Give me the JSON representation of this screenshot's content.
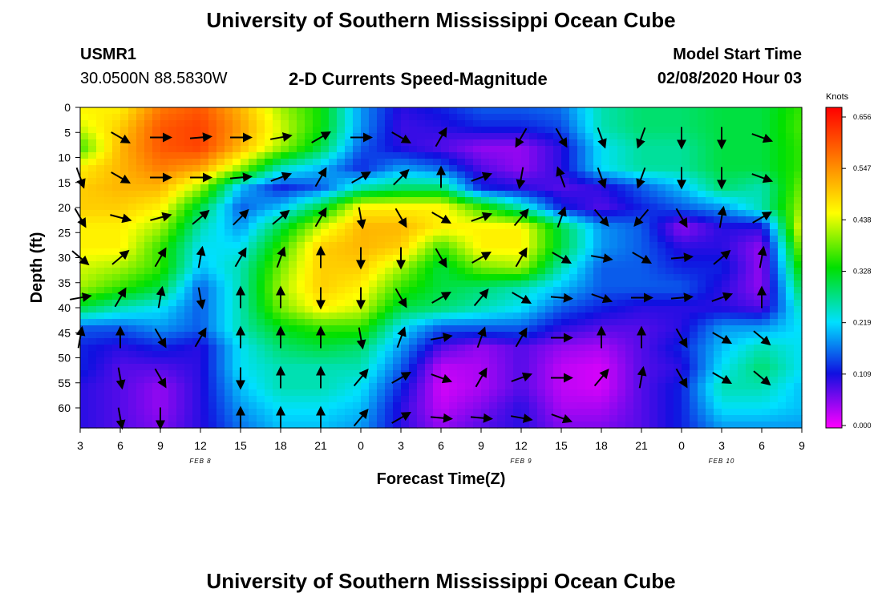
{
  "header": {
    "title_top": "University of Southern Mississippi Ocean Cube",
    "station_id": "USMR1",
    "station_coords": "30.0500N 88.5830W",
    "plot_title": "2-D Currents Speed-Magnitude",
    "model_start_label": "Model Start Time",
    "model_start_value": "02/08/2020 Hour 03",
    "title_bottom": "University of Southern Mississippi Ocean Cube"
  },
  "chart_data": {
    "type": "heatmap",
    "title": "2-D Currents Speed-Magnitude",
    "xlabel": "Forecast Time(Z)",
    "ylabel": "Depth (ft)",
    "x_ticks": [
      "3",
      "6",
      "9",
      "12",
      "15",
      "18",
      "21",
      "0",
      "3",
      "6",
      "9",
      "12",
      "15",
      "18",
      "21",
      "0",
      "3",
      "6",
      "9"
    ],
    "date_labels": [
      {
        "text": "FEB 8",
        "at_tick": 3
      },
      {
        "text": "FEB 9",
        "at_tick": 11
      },
      {
        "text": "FEB 10",
        "at_tick": 16
      }
    ],
    "y_ticks": [
      0,
      5,
      10,
      15,
      20,
      25,
      30,
      35,
      40,
      45,
      50,
      55,
      60
    ],
    "ylim": [
      0,
      64
    ],
    "y_inverted": true,
    "colorbar": {
      "label": "Knots",
      "ticks": [
        "0.656",
        "0.547",
        "0.438",
        "0.328",
        "0.219",
        "0.109",
        "0.000"
      ],
      "range": [
        0,
        0.656
      ]
    },
    "depths": [
      0,
      4,
      8,
      12,
      16,
      20,
      24,
      28,
      32,
      36,
      40,
      44,
      48,
      52,
      56,
      60,
      64
    ],
    "speeds": [
      [
        0.45,
        0.45,
        0.55,
        0.58,
        0.5,
        0.4,
        0.33,
        0.18,
        0.1,
        0.12,
        0.15,
        0.15,
        0.16,
        0.25,
        0.28,
        0.28,
        0.3,
        0.3,
        0.35
      ],
      [
        0.42,
        0.48,
        0.58,
        0.6,
        0.52,
        0.42,
        0.33,
        0.18,
        0.09,
        0.1,
        0.12,
        0.12,
        0.14,
        0.25,
        0.28,
        0.28,
        0.3,
        0.3,
        0.36
      ],
      [
        0.35,
        0.5,
        0.58,
        0.6,
        0.5,
        0.4,
        0.3,
        0.15,
        0.1,
        0.08,
        0.05,
        0.05,
        0.1,
        0.22,
        0.26,
        0.26,
        0.3,
        0.3,
        0.35
      ],
      [
        0.45,
        0.5,
        0.55,
        0.52,
        0.4,
        0.25,
        0.2,
        0.12,
        0.18,
        0.15,
        0.08,
        0.05,
        0.1,
        0.22,
        0.26,
        0.26,
        0.3,
        0.3,
        0.35
      ],
      [
        0.48,
        0.5,
        0.5,
        0.4,
        0.2,
        0.12,
        0.15,
        0.25,
        0.28,
        0.28,
        0.12,
        0.1,
        0.08,
        0.1,
        0.15,
        0.2,
        0.28,
        0.25,
        0.38
      ],
      [
        0.48,
        0.48,
        0.45,
        0.3,
        0.15,
        0.2,
        0.3,
        0.45,
        0.45,
        0.45,
        0.35,
        0.25,
        0.12,
        0.08,
        0.12,
        0.15,
        0.18,
        0.25,
        0.4
      ],
      [
        0.45,
        0.45,
        0.4,
        0.25,
        0.18,
        0.3,
        0.42,
        0.5,
        0.5,
        0.45,
        0.45,
        0.45,
        0.3,
        0.18,
        0.15,
        0.05,
        0.1,
        0.1,
        0.45
      ],
      [
        0.45,
        0.45,
        0.35,
        0.22,
        0.22,
        0.35,
        0.48,
        0.5,
        0.48,
        0.35,
        0.45,
        0.45,
        0.3,
        0.18,
        0.15,
        0.1,
        0.1,
        0.05,
        0.4
      ],
      [
        0.42,
        0.4,
        0.35,
        0.2,
        0.25,
        0.38,
        0.48,
        0.48,
        0.4,
        0.3,
        0.38,
        0.4,
        0.25,
        0.15,
        0.15,
        0.12,
        0.12,
        0.05,
        0.35
      ],
      [
        0.4,
        0.35,
        0.3,
        0.15,
        0.25,
        0.4,
        0.48,
        0.45,
        0.35,
        0.3,
        0.28,
        0.25,
        0.2,
        0.15,
        0.15,
        0.15,
        0.1,
        0.05,
        0.3
      ],
      [
        0.3,
        0.25,
        0.22,
        0.15,
        0.25,
        0.38,
        0.45,
        0.42,
        0.3,
        0.28,
        0.25,
        0.22,
        0.15,
        0.12,
        0.1,
        0.1,
        0.1,
        0.08,
        0.25
      ],
      [
        0.15,
        0.15,
        0.18,
        0.15,
        0.25,
        0.32,
        0.35,
        0.35,
        0.22,
        0.15,
        0.15,
        0.15,
        0.1,
        0.08,
        0.08,
        0.1,
        0.18,
        0.18,
        0.22
      ],
      [
        0.12,
        0.1,
        0.12,
        0.1,
        0.22,
        0.28,
        0.3,
        0.28,
        0.18,
        0.08,
        0.05,
        0.08,
        0.05,
        0.04,
        0.08,
        0.12,
        0.2,
        0.25,
        0.22
      ],
      [
        0.12,
        0.08,
        0.08,
        0.1,
        0.22,
        0.25,
        0.25,
        0.25,
        0.15,
        0.03,
        0.04,
        0.08,
        0.03,
        0.02,
        0.08,
        0.1,
        0.22,
        0.28,
        0.22
      ],
      [
        0.1,
        0.08,
        0.05,
        0.1,
        0.2,
        0.25,
        0.25,
        0.22,
        0.12,
        0.02,
        0.04,
        0.08,
        0.03,
        0.02,
        0.08,
        0.12,
        0.25,
        0.25,
        0.2
      ],
      [
        0.1,
        0.08,
        0.05,
        0.1,
        0.18,
        0.22,
        0.22,
        0.2,
        0.1,
        0.03,
        0.06,
        0.1,
        0.04,
        0.04,
        0.08,
        0.12,
        0.22,
        0.22,
        0.2
      ],
      [
        0.1,
        0.08,
        0.06,
        0.1,
        0.16,
        0.2,
        0.2,
        0.18,
        0.1,
        0.05,
        0.08,
        0.1,
        0.06,
        0.06,
        0.08,
        0.12,
        0.18,
        0.18,
        0.18
      ]
    ],
    "vectors": [
      {
        "x": 1,
        "d": 6,
        "ang": -30
      },
      {
        "x": 2,
        "d": 6,
        "ang": 0
      },
      {
        "x": 3,
        "d": 6,
        "ang": 5
      },
      {
        "x": 4,
        "d": 6,
        "ang": 0
      },
      {
        "x": 5,
        "d": 6,
        "ang": 10
      },
      {
        "x": 6,
        "d": 6,
        "ang": 30
      },
      {
        "x": 7,
        "d": 6,
        "ang": 0
      },
      {
        "x": 8,
        "d": 6,
        "ang": -30
      },
      {
        "x": 9,
        "d": 6,
        "ang": 60
      },
      {
        "x": 11,
        "d": 6,
        "ang": -120
      },
      {
        "x": 12,
        "d": 6,
        "ang": -60
      },
      {
        "x": 13,
        "d": 6,
        "ang": -70
      },
      {
        "x": 14,
        "d": 6,
        "ang": -110
      },
      {
        "x": 15,
        "d": 6,
        "ang": -90
      },
      {
        "x": 16,
        "d": 6,
        "ang": -90
      },
      {
        "x": 17,
        "d": 6,
        "ang": -20
      },
      {
        "x": 0,
        "d": 14,
        "ang": -70
      },
      {
        "x": 1,
        "d": 14,
        "ang": -30
      },
      {
        "x": 2,
        "d": 14,
        "ang": 0
      },
      {
        "x": 3,
        "d": 14,
        "ang": 0
      },
      {
        "x": 4,
        "d": 14,
        "ang": 5
      },
      {
        "x": 5,
        "d": 14,
        "ang": 20
      },
      {
        "x": 6,
        "d": 14,
        "ang": 60
      },
      {
        "x": 7,
        "d": 14,
        "ang": 30
      },
      {
        "x": 8,
        "d": 14,
        "ang": 45
      },
      {
        "x": 9,
        "d": 14,
        "ang": 90
      },
      {
        "x": 10,
        "d": 14,
        "ang": 20
      },
      {
        "x": 11,
        "d": 14,
        "ang": -100
      },
      {
        "x": 12,
        "d": 14,
        "ang": 110
      },
      {
        "x": 13,
        "d": 14,
        "ang": -70
      },
      {
        "x": 14,
        "d": 14,
        "ang": -110
      },
      {
        "x": 15,
        "d": 14,
        "ang": -90
      },
      {
        "x": 16,
        "d": 14,
        "ang": -90
      },
      {
        "x": 17,
        "d": 14,
        "ang": -20
      },
      {
        "x": 0,
        "d": 22,
        "ang": -60
      },
      {
        "x": 1,
        "d": 22,
        "ang": -15
      },
      {
        "x": 2,
        "d": 22,
        "ang": 15
      },
      {
        "x": 3,
        "d": 22,
        "ang": 40
      },
      {
        "x": 4,
        "d": 22,
        "ang": 45
      },
      {
        "x": 5,
        "d": 22,
        "ang": 40
      },
      {
        "x": 6,
        "d": 22,
        "ang": 60
      },
      {
        "x": 7,
        "d": 22,
        "ang": -80
      },
      {
        "x": 8,
        "d": 22,
        "ang": -60
      },
      {
        "x": 9,
        "d": 22,
        "ang": -30
      },
      {
        "x": 10,
        "d": 22,
        "ang": 20
      },
      {
        "x": 11,
        "d": 22,
        "ang": 50
      },
      {
        "x": 12,
        "d": 22,
        "ang": 70
      },
      {
        "x": 13,
        "d": 22,
        "ang": -50
      },
      {
        "x": 14,
        "d": 22,
        "ang": -130
      },
      {
        "x": 15,
        "d": 22,
        "ang": -60
      },
      {
        "x": 16,
        "d": 22,
        "ang": 80
      },
      {
        "x": 17,
        "d": 22,
        "ang": 30
      },
      {
        "x": 0,
        "d": 30,
        "ang": -40
      },
      {
        "x": 1,
        "d": 30,
        "ang": 40
      },
      {
        "x": 2,
        "d": 30,
        "ang": 60
      },
      {
        "x": 3,
        "d": 30,
        "ang": 80
      },
      {
        "x": 4,
        "d": 30,
        "ang": 60
      },
      {
        "x": 5,
        "d": 30,
        "ang": 70
      },
      {
        "x": 6,
        "d": 30,
        "ang": 90
      },
      {
        "x": 7,
        "d": 30,
        "ang": -90
      },
      {
        "x": 8,
        "d": 30,
        "ang": -90
      },
      {
        "x": 9,
        "d": 30,
        "ang": -60
      },
      {
        "x": 10,
        "d": 30,
        "ang": 30
      },
      {
        "x": 11,
        "d": 30,
        "ang": 60
      },
      {
        "x": 12,
        "d": 30,
        "ang": -30
      },
      {
        "x": 13,
        "d": 30,
        "ang": -10
      },
      {
        "x": 14,
        "d": 30,
        "ang": -30
      },
      {
        "x": 15,
        "d": 30,
        "ang": 5
      },
      {
        "x": 16,
        "d": 30,
        "ang": 40
      },
      {
        "x": 17,
        "d": 30,
        "ang": 80
      },
      {
        "x": 0,
        "d": 38,
        "ang": 10
      },
      {
        "x": 1,
        "d": 38,
        "ang": 60
      },
      {
        "x": 2,
        "d": 38,
        "ang": 80
      },
      {
        "x": 3,
        "d": 38,
        "ang": -80
      },
      {
        "x": 4,
        "d": 38,
        "ang": 90
      },
      {
        "x": 5,
        "d": 38,
        "ang": 90
      },
      {
        "x": 6,
        "d": 38,
        "ang": -90
      },
      {
        "x": 7,
        "d": 38,
        "ang": -90
      },
      {
        "x": 8,
        "d": 38,
        "ang": -60
      },
      {
        "x": 9,
        "d": 38,
        "ang": 30
      },
      {
        "x": 10,
        "d": 38,
        "ang": 50
      },
      {
        "x": 11,
        "d": 38,
        "ang": -30
      },
      {
        "x": 12,
        "d": 38,
        "ang": -5
      },
      {
        "x": 13,
        "d": 38,
        "ang": -20
      },
      {
        "x": 14,
        "d": 38,
        "ang": 0
      },
      {
        "x": 15,
        "d": 38,
        "ang": 5
      },
      {
        "x": 16,
        "d": 38,
        "ang": 20
      },
      {
        "x": 17,
        "d": 38,
        "ang": 90
      },
      {
        "x": 0,
        "d": 46,
        "ang": 80
      },
      {
        "x": 1,
        "d": 46,
        "ang": 90
      },
      {
        "x": 2,
        "d": 46,
        "ang": -60
      },
      {
        "x": 3,
        "d": 46,
        "ang": 60
      },
      {
        "x": 4,
        "d": 46,
        "ang": 90
      },
      {
        "x": 5,
        "d": 46,
        "ang": 90
      },
      {
        "x": 6,
        "d": 46,
        "ang": 90
      },
      {
        "x": 7,
        "d": 46,
        "ang": -80
      },
      {
        "x": 8,
        "d": 46,
        "ang": 70
      },
      {
        "x": 9,
        "d": 46,
        "ang": 10
      },
      {
        "x": 10,
        "d": 46,
        "ang": 70
      },
      {
        "x": 11,
        "d": 46,
        "ang": 60
      },
      {
        "x": 12,
        "d": 46,
        "ang": 0
      },
      {
        "x": 13,
        "d": 46,
        "ang": 90
      },
      {
        "x": 14,
        "d": 46,
        "ang": 90
      },
      {
        "x": 15,
        "d": 46,
        "ang": -60
      },
      {
        "x": 16,
        "d": 46,
        "ang": -30
      },
      {
        "x": 17,
        "d": 46,
        "ang": -40
      },
      {
        "x": 1,
        "d": 54,
        "ang": -80
      },
      {
        "x": 2,
        "d": 54,
        "ang": -60
      },
      {
        "x": 4,
        "d": 54,
        "ang": -90
      },
      {
        "x": 5,
        "d": 54,
        "ang": 90
      },
      {
        "x": 6,
        "d": 54,
        "ang": 90
      },
      {
        "x": 7,
        "d": 54,
        "ang": 50
      },
      {
        "x": 8,
        "d": 54,
        "ang": 30
      },
      {
        "x": 9,
        "d": 54,
        "ang": -20
      },
      {
        "x": 10,
        "d": 54,
        "ang": 60
      },
      {
        "x": 11,
        "d": 54,
        "ang": 20
      },
      {
        "x": 12,
        "d": 54,
        "ang": 0
      },
      {
        "x": 13,
        "d": 54,
        "ang": 50
      },
      {
        "x": 14,
        "d": 54,
        "ang": 80
      },
      {
        "x": 15,
        "d": 54,
        "ang": -60
      },
      {
        "x": 16,
        "d": 54,
        "ang": -30
      },
      {
        "x": 17,
        "d": 54,
        "ang": -40
      },
      {
        "x": 1,
        "d": 62,
        "ang": -80
      },
      {
        "x": 2,
        "d": 62,
        "ang": -90
      },
      {
        "x": 4,
        "d": 62,
        "ang": 90
      },
      {
        "x": 5,
        "d": 62,
        "ang": 90
      },
      {
        "x": 6,
        "d": 62,
        "ang": 90
      },
      {
        "x": 7,
        "d": 62,
        "ang": 50
      },
      {
        "x": 8,
        "d": 62,
        "ang": 30
      },
      {
        "x": 9,
        "d": 62,
        "ang": -5
      },
      {
        "x": 10,
        "d": 62,
        "ang": -5
      },
      {
        "x": 11,
        "d": 62,
        "ang": -10
      },
      {
        "x": 12,
        "d": 62,
        "ang": -20
      }
    ]
  }
}
